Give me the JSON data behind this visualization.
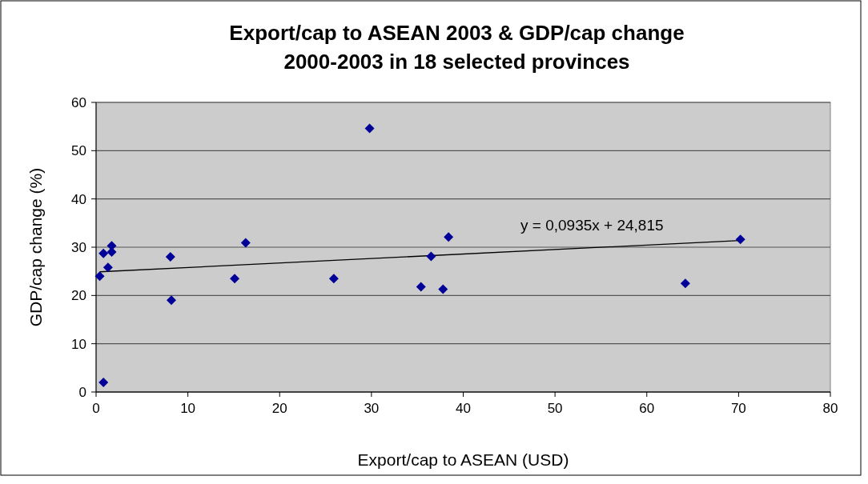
{
  "chart_data": {
    "type": "scatter",
    "title": "Export/cap to ASEAN 2003 & GDP/cap change\n2000-2003 in 18 selected provinces",
    "xlabel": "Export/cap to ASEAN (USD)",
    "ylabel": "GDP/cap change (%)",
    "annotations": [
      "y = 0,0935x + 24,815"
    ],
    "xlim": [
      0,
      80
    ],
    "xticks": [
      0,
      10,
      20,
      30,
      40,
      50,
      60,
      70,
      80
    ],
    "ylim": [
      0,
      60
    ],
    "yticks": [
      0,
      10,
      20,
      30,
      40,
      50,
      60
    ],
    "grid": "y",
    "series": [
      {
        "marker": "diamond",
        "color": "#000099",
        "x": [
          0.4,
          0.8,
          1.7,
          1.7,
          1.3,
          0.8,
          8.1,
          8.2,
          15.1,
          16.3,
          25.9,
          29.8,
          35.4,
          36.5,
          37.8,
          38.4,
          64.2,
          70.2
        ],
        "values": [
          24,
          28.7,
          30.3,
          29,
          25.8,
          2,
          28,
          19,
          23.5,
          30.9,
          23.5,
          54.6,
          21.8,
          28.1,
          21.3,
          32.1,
          22.5,
          31.6
        ]
      },
      {
        "type": "line",
        "color": "#000000",
        "x": [
          0.4,
          70.2
        ],
        "values": [
          24.9,
          31.4
        ]
      }
    ]
  }
}
